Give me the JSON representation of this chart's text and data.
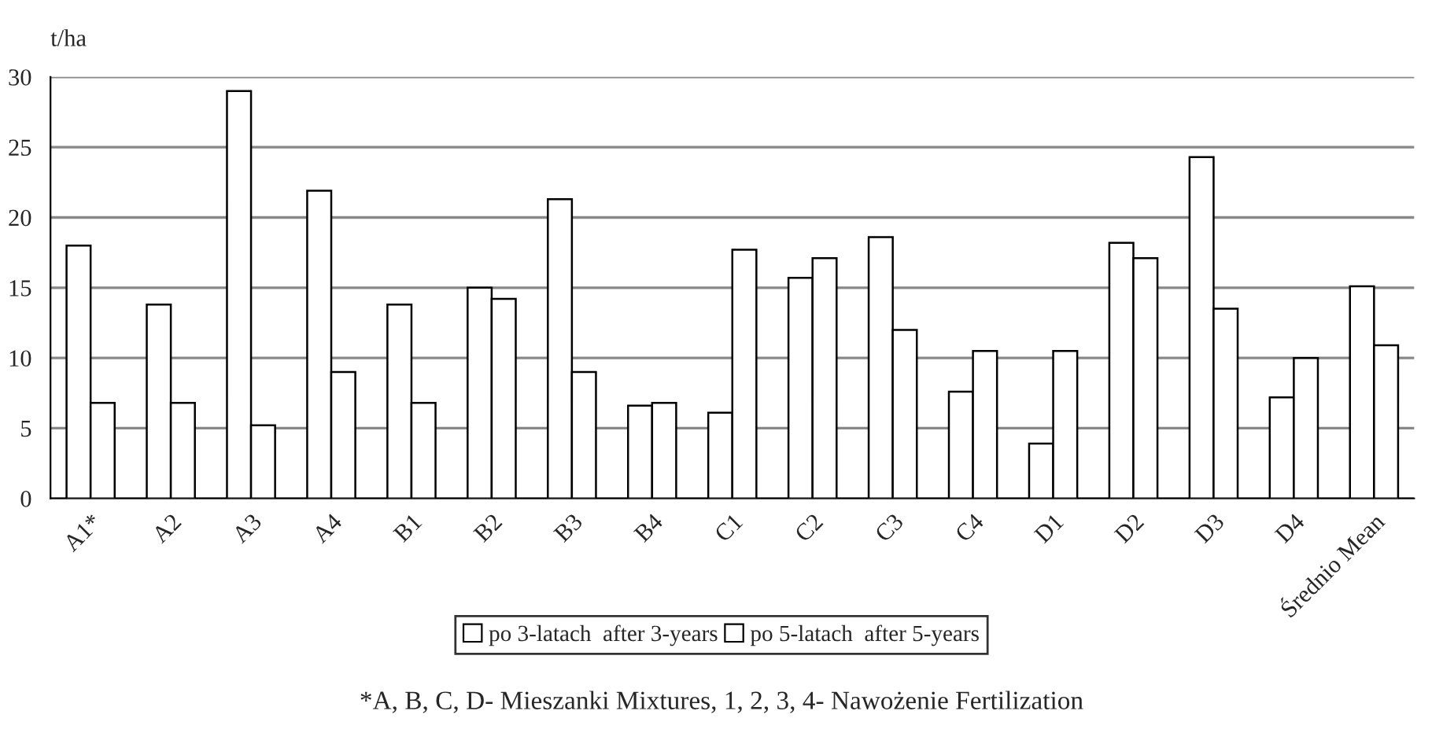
{
  "chart_data": {
    "type": "bar",
    "ylabel": "t/ha",
    "categories": [
      "A1*",
      "A2",
      "A3",
      "A4",
      "B1",
      "B2",
      "B3",
      "B4",
      "C1",
      "C2",
      "C3",
      "C4",
      "D1",
      "D2",
      "D3",
      "D4",
      "Średnio Mean"
    ],
    "series": [
      {
        "name": "po 3-latach  after 3-years",
        "color": "#ffffff",
        "values": [
          18,
          13.8,
          29,
          21.9,
          13.8,
          15,
          21.3,
          6.6,
          6.1,
          15.7,
          18.6,
          7.6,
          3.9,
          18.2,
          24.3,
          7.2,
          15.1
        ]
      },
      {
        "name": "po 5-latach  after 5-years",
        "color": "#ffffff",
        "values": [
          6.8,
          6.8,
          5.2,
          9,
          6.8,
          14.2,
          9,
          6.8,
          17.7,
          17.1,
          12,
          10.5,
          10.5,
          17.1,
          13.5,
          10,
          10.9
        ]
      }
    ],
    "ylim": [
      0,
      30
    ],
    "yticks": [
      0,
      5,
      10,
      15,
      20,
      25,
      30
    ],
    "grid": "y",
    "legend": "bottom",
    "annotations": [
      "*A, B, C, D- Mieszanki Mixtures, 1, 2, 3, 4- Nawożenie Fertilization"
    ]
  }
}
